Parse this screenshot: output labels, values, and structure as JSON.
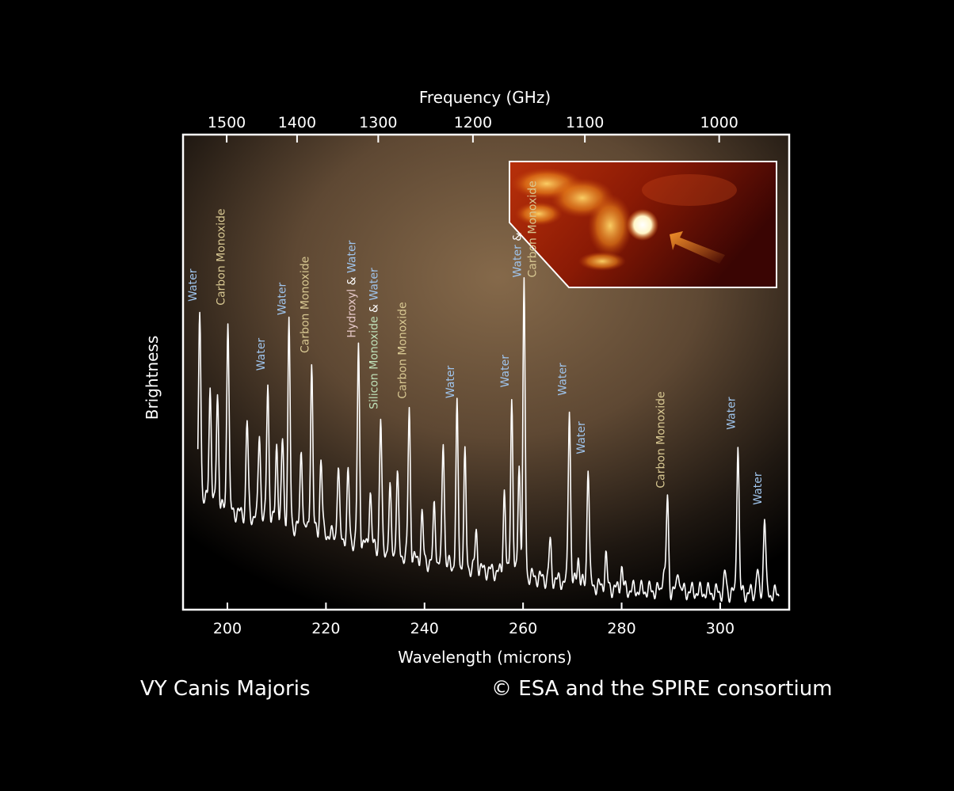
{
  "colors": {
    "water": "#9fc4ec",
    "carbon_monoxide": "#d8c892",
    "silicon_monoxide": "#bfe0b8",
    "hydroxyl": "#e6c8c8",
    "ampersand": "#ffffff",
    "spectrum_line": "#ffffff",
    "panel_glow": "#8a6a48",
    "inset_arrow": "#f0902a"
  },
  "caption": {
    "object_name": "VY Canis Majoris",
    "credit": "© ESA and the SPIRE consortium"
  },
  "chart_data": {
    "type": "line",
    "title": "",
    "xlabel": "Wavelength (microns)",
    "x2label": "Frequency (GHz)",
    "ylabel": "Brightness",
    "xlim": [
      191,
      314
    ],
    "ylim": [
      0,
      100
    ],
    "x_ticks": [
      200,
      220,
      240,
      260,
      280,
      300
    ],
    "x_tick_labels": [
      "200",
      "220",
      "240",
      "260",
      "280",
      "300"
    ],
    "x2_ticks": [
      1500,
      1400,
      1300,
      1200,
      1100,
      1000
    ],
    "x2_tick_labels": [
      "1500",
      "1400",
      "1300",
      "1200",
      "1100",
      "1000"
    ],
    "grid": false,
    "baseline": [
      [
        194,
        24
      ],
      [
        200,
        21
      ],
      [
        220,
        16
      ],
      [
        240,
        10
      ],
      [
        260,
        7
      ],
      [
        280,
        4
      ],
      [
        312,
        3
      ]
    ],
    "peaks": [
      [
        194.4,
        40
      ],
      [
        196.5,
        25
      ],
      [
        198.0,
        24
      ],
      [
        200.1,
        42
      ],
      [
        204.0,
        20
      ],
      [
        206.5,
        19
      ],
      [
        208.2,
        30
      ],
      [
        210.0,
        17
      ],
      [
        211.2,
        18
      ],
      [
        212.5,
        43
      ],
      [
        215.0,
        17
      ],
      [
        217.1,
        36
      ],
      [
        219.0,
        16
      ],
      [
        222.5,
        15
      ],
      [
        224.5,
        14
      ],
      [
        226.6,
        42
      ],
      [
        229.0,
        12
      ],
      [
        231.1,
        28
      ],
      [
        233.0,
        13
      ],
      [
        234.5,
        17
      ],
      [
        236.9,
        32
      ],
      [
        239.5,
        10
      ],
      [
        242.0,
        13
      ],
      [
        243.8,
        27
      ],
      [
        246.6,
        34
      ],
      [
        248.2,
        24
      ],
      [
        250.5,
        8
      ],
      [
        256.2,
        18
      ],
      [
        257.7,
        38
      ],
      [
        259.2,
        24
      ],
      [
        260.2,
        62
      ],
      [
        265.5,
        8
      ],
      [
        269.4,
        38
      ],
      [
        271.2,
        6
      ],
      [
        273.2,
        26
      ],
      [
        276.8,
        7
      ],
      [
        280.0,
        5
      ],
      [
        288.5,
        5
      ],
      [
        289.3,
        20
      ],
      [
        291.5,
        5
      ],
      [
        301.0,
        4
      ],
      [
        303.6,
        33
      ],
      [
        307.5,
        5
      ],
      [
        309.0,
        17
      ]
    ],
    "annotations": [
      {
        "x": 194.4,
        "parts": [
          {
            "text": "Water",
            "kind": "water"
          }
        ]
      },
      {
        "x": 200.1,
        "parts": [
          {
            "text": "Carbon Monoxide",
            "kind": "carbon_monoxide"
          }
        ]
      },
      {
        "x": 208.2,
        "parts": [
          {
            "text": "Water",
            "kind": "water"
          }
        ]
      },
      {
        "x": 212.5,
        "parts": [
          {
            "text": "Water",
            "kind": "water"
          }
        ]
      },
      {
        "x": 217.1,
        "parts": [
          {
            "text": "Carbon Monoxide",
            "kind": "carbon_monoxide"
          }
        ]
      },
      {
        "x": 226.6,
        "parts": [
          {
            "text": "Hydroxyl",
            "kind": "hydroxyl"
          },
          {
            "text": " & ",
            "kind": "ampersand"
          },
          {
            "text": "Water",
            "kind": "water"
          }
        ]
      },
      {
        "x": 231.1,
        "parts": [
          {
            "text": "Silicon Monoxide",
            "kind": "silicon_monoxide"
          },
          {
            "text": " & ",
            "kind": "ampersand"
          },
          {
            "text": "Water",
            "kind": "water"
          }
        ]
      },
      {
        "x": 236.9,
        "parts": [
          {
            "text": "Carbon Monoxide",
            "kind": "carbon_monoxide"
          }
        ]
      },
      {
        "x": 246.6,
        "parts": [
          {
            "text": "Water",
            "kind": "water"
          }
        ]
      },
      {
        "x": 257.7,
        "parts": [
          {
            "text": "Water",
            "kind": "water"
          }
        ]
      },
      {
        "x": 260.2,
        "parts": [
          {
            "text": "Water",
            "kind": "water"
          },
          {
            "text": " &",
            "kind": "ampersand"
          }
        ],
        "second_line": [
          {
            "text": "Carbon Monoxide",
            "kind": "carbon_monoxide"
          }
        ]
      },
      {
        "x": 269.4,
        "parts": [
          {
            "text": "Water",
            "kind": "water"
          }
        ]
      },
      {
        "x": 273.2,
        "parts": [
          {
            "text": "Water",
            "kind": "water"
          }
        ]
      },
      {
        "x": 289.3,
        "parts": [
          {
            "text": "Carbon Monoxide",
            "kind": "carbon_monoxide"
          }
        ]
      },
      {
        "x": 303.6,
        "parts": [
          {
            "text": "Water",
            "kind": "water"
          }
        ]
      },
      {
        "x": 309.0,
        "parts": [
          {
            "text": "Water",
            "kind": "water"
          }
        ]
      }
    ]
  }
}
